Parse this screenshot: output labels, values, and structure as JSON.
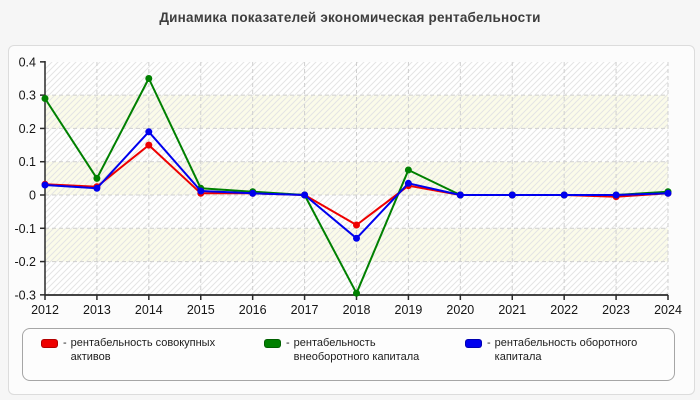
{
  "title": "Динамика показателей экономическая рентабельности",
  "chart_data": {
    "type": "line",
    "x": [
      2012,
      2013,
      2014,
      2015,
      2016,
      2017,
      2018,
      2019,
      2020,
      2021,
      2022,
      2023,
      2024
    ],
    "series": [
      {
        "name": "рентабельность совокупных активов",
        "color": "#ee0000",
        "marker": "circle",
        "values": [
          0.032,
          0.025,
          0.15,
          0.005,
          0.005,
          0.0,
          -0.09,
          0.028,
          0.0,
          0.0,
          0.0,
          -0.005,
          0.005
        ]
      },
      {
        "name": "рентабельность внеоборотного капитала",
        "color": "#008000",
        "marker": "circle",
        "values": [
          0.29,
          0.05,
          0.35,
          0.02,
          0.01,
          0.0,
          -0.295,
          0.075,
          0.0,
          0.0,
          0.0,
          0.0,
          0.01
        ]
      },
      {
        "name": "рентабельность оборотного капитала",
        "color": "#0000ee",
        "marker": "circle",
        "values": [
          0.03,
          0.02,
          0.19,
          0.012,
          0.005,
          0.0,
          -0.13,
          0.035,
          0.0,
          0.0,
          0.0,
          0.0,
          0.005
        ]
      }
    ],
    "xlabel": "",
    "ylabel": "",
    "ylim": [
      -0.3,
      0.4
    ],
    "yticks": [
      0.4,
      0.3,
      0.2,
      0.1,
      0,
      -0.1,
      -0.2,
      -0.3
    ],
    "ytick_labels": [
      "0.4",
      "0.3",
      "0.2",
      "0.1",
      "0",
      "-0.1",
      "-0.2",
      "-0.3"
    ],
    "grid": true,
    "legend_position": "bottom"
  },
  "legend": {
    "separator": "-",
    "items": [
      "рентабельность совокупных активов",
      "рентабельность внеоборотного капитала",
      "рентабельность оборотного капитала"
    ]
  },
  "theme": {
    "page_bg": "#f6f6f6",
    "card_bg": "#fcfcfc",
    "card_border": "#dcdcdc",
    "plot_band_light": "#ffffff",
    "plot_band_ivory": "#fbfbe9",
    "hatch_line": "#e4e4e4",
    "grid_line": "#cfcfcf",
    "axis_line": "#2a2a2a",
    "legend_border": "#a6a6a6",
    "title_color": "#3d3d3d"
  }
}
